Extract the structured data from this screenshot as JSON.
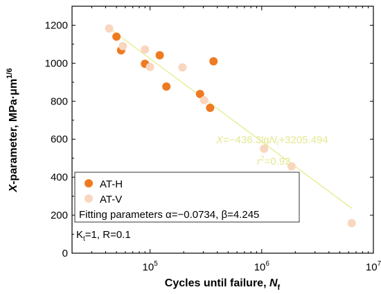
{
  "colors": {
    "at_h": "#EE7B22",
    "at_v": "#F9D6BF",
    "fit_line": "#E6EB8E",
    "fit_text": "#E3E890"
  },
  "chart_data": {
    "type": "scatter",
    "x_scale": "log",
    "xlim": [
      20000,
      10000000
    ],
    "ylim": [
      0,
      1300
    ],
    "x_ticks": [
      {
        "value": 100000,
        "base": "10",
        "exp": "5"
      },
      {
        "value": 1000000,
        "base": "10",
        "exp": "6"
      },
      {
        "value": 10000000,
        "base": "10",
        "exp": "7"
      }
    ],
    "y_ticks": [
      0,
      200,
      400,
      600,
      800,
      1000,
      1200
    ],
    "y_tick_labels": [
      "0",
      "200",
      "400",
      "600",
      "800",
      "1000",
      "1200"
    ],
    "xlabel": {
      "main": "Cycles until failure, ",
      "var": "N",
      "sub": "f"
    },
    "ylabel": {
      "var": "X",
      "main": "-parameter, MPa·μm",
      "sup": "1/6"
    },
    "series": [
      {
        "name": "AT-H",
        "color": "#EE7B22",
        "points": [
          {
            "x": 50000,
            "y": 1140
          },
          {
            "x": 55000,
            "y": 1068
          },
          {
            "x": 90000,
            "y": 997
          },
          {
            "x": 122000,
            "y": 1042
          },
          {
            "x": 140000,
            "y": 877
          },
          {
            "x": 280000,
            "y": 838
          },
          {
            "x": 345000,
            "y": 765
          },
          {
            "x": 370000,
            "y": 1010
          }
        ]
      },
      {
        "name": "AT-V",
        "color": "#F9D6BF",
        "points": [
          {
            "x": 43000,
            "y": 1183
          },
          {
            "x": 57000,
            "y": 1090
          },
          {
            "x": 90000,
            "y": 1072
          },
          {
            "x": 100000,
            "y": 980
          },
          {
            "x": 195000,
            "y": 978
          },
          {
            "x": 305000,
            "y": 805
          },
          {
            "x": 1050000,
            "y": 550
          },
          {
            "x": 1850000,
            "y": 457
          },
          {
            "x": 6400000,
            "y": 158
          }
        ]
      }
    ],
    "fit": {
      "slope": -436.3,
      "intercept": 3205.494,
      "x_start": 45000,
      "x_end": 6400000,
      "equation": {
        "lhs": "X",
        "mid": "=−436.3lg",
        "var": "N",
        "sub": "f",
        "tail": "+3205.494"
      },
      "r2": {
        "var": "r",
        "sup": "2",
        "tail": "=0.92"
      }
    },
    "legend": {
      "placement": "bottom-left",
      "items": [
        "AT-H",
        "AT-V"
      ],
      "note": "Fitting parameters α=−0.0734, β=4.245"
    },
    "annotation": {
      "main": "K",
      "sub": "t",
      "tail": "=1, R=0.1"
    }
  }
}
